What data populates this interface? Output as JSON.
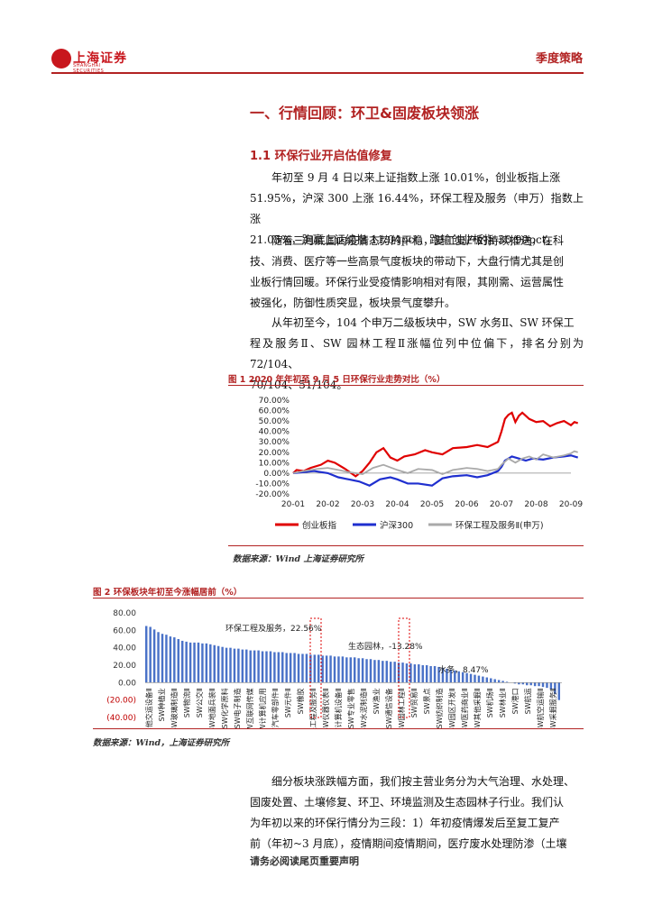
{
  "header": {
    "logo_text": "上海证券",
    "logo_sub": "SHANGHAI SECURITIES",
    "report_type": "季度策略"
  },
  "section": {
    "title": "一、行情回顾：环卫&固废板块领涨",
    "subsection": "1.1 环保行业开启估值修复"
  },
  "paragraphs": [
    [
      "年初至 9 月 4 日以来上证指数上涨 10.01%，创业板指上涨",
      "51.95%，沪深 300 上涨 16.44%，环保工程及服务（申万）指数上涨",
      "21.05%，跑赢上证综指 11.04pct，跑输创业板指 30.90pct。"
    ],
    [
      "随着三月底国内疫情态势的平稳，复工复产的持续推进，在科",
      "技、消费、医疗等一些高景气度板块的带动下，大盘行情尤其是创",
      "业板行情回暖。环保行业受疫情影响相对有限，其刚需、运营属性",
      "被强化，防御性质突显，板块景气度攀升。"
    ],
    [
      "从年初至今，104 个申万二级板块中，SW 水务Ⅱ、SW 环保工",
      "程及服务Ⅱ、SW 园林工程Ⅱ涨幅位列中位偏下，排名分别为 72/104、",
      "70/104、51/104。"
    ]
  ],
  "figure1": {
    "title": "图 1 2020 年年初至 9 月 5 日环保行业走势对比（%）",
    "source": "数据来源：Wind    上海证券研究所"
  },
  "figure2": {
    "title": "图 2 环保板块年初至今涨幅居前（%）",
    "source": "数据来源：Wind，上海证券研究所",
    "annotations": [
      "环保工程及服务，22.56%",
      "生态园林，-13.28%",
      "水务，8.47%"
    ]
  },
  "body_after": [
    "细分板块涨跌幅方面，我们按主营业务分为大气治理、水处理、",
    "固废处置、土壤修复、环卫、环境监测及生态园林子行业。我们认",
    "为年初以来的环保行情分为三段：1）年初疫情爆发后至复工复产",
    "前（年初~3 月底），疫情期间疫情期间，医疗废水处理防渗（土壤"
  ],
  "footer": "请务必阅读尾页重要声明",
  "colors": {
    "accent": "#b22222",
    "series_red": "#e00000",
    "series_blue": "#1f2fcf",
    "series_gray": "#a9a9a9",
    "bar_blue": "#4a72c8"
  },
  "chart_data": [
    {
      "type": "line",
      "title": "",
      "x_ticks": [
        "20-01",
        "20-02",
        "20-03",
        "20-04",
        "20-05",
        "20-06",
        "20-07",
        "20-08",
        "20-09"
      ],
      "y_ticks": [
        "70.00%",
        "60.00%",
        "50.00%",
        "40.00%",
        "30.00%",
        "20.00%",
        "10.00%",
        "0.00%",
        "-10.00%",
        "-20.00%"
      ],
      "ylim": [
        -20,
        70
      ],
      "legend_position": "bottom",
      "series": [
        {
          "name": "创业板指",
          "color": "#e00000",
          "x": [
            0,
            0.1,
            0.3,
            0.5,
            0.8,
            1.0,
            1.2,
            1.5,
            1.8,
            2.0,
            2.2,
            2.4,
            2.6,
            2.8,
            3.0,
            3.2,
            3.5,
            3.8,
            4.0,
            4.3,
            4.6,
            5.0,
            5.3,
            5.6,
            5.9,
            6.0,
            6.1,
            6.2,
            6.3,
            6.4,
            6.5,
            6.6,
            6.8,
            7.0,
            7.2,
            7.4,
            7.6,
            7.8,
            8.0,
            8.1,
            8.2
          ],
          "values": [
            0,
            3,
            2,
            5,
            8,
            12,
            10,
            4,
            -3,
            2,
            10,
            20,
            24,
            15,
            12,
            16,
            18,
            22,
            20,
            18,
            24,
            25,
            27,
            25,
            30,
            40,
            52,
            56,
            58,
            49,
            55,
            58,
            52,
            49,
            50,
            45,
            48,
            50,
            46,
            49,
            48
          ]
        },
        {
          "name": "沪深300",
          "color": "#1f2fcf",
          "x": [
            0,
            0.3,
            0.6,
            1.0,
            1.3,
            1.6,
            1.9,
            2.2,
            2.5,
            2.8,
            3.0,
            3.3,
            3.6,
            4.0,
            4.3,
            4.6,
            5.0,
            5.3,
            5.6,
            5.9,
            6.0,
            6.1,
            6.3,
            6.5,
            6.7,
            6.9,
            7.2,
            7.5,
            7.8,
            8.0,
            8.2
          ],
          "values": [
            0,
            1,
            2,
            0,
            -4,
            -6,
            -8,
            -12,
            -6,
            -4,
            -6,
            -10,
            -10,
            -12,
            -5,
            -3,
            -2,
            -4,
            -2,
            2,
            6,
            12,
            16,
            14,
            12,
            14,
            13,
            15,
            16,
            17,
            15
          ]
        },
        {
          "name": "环保工程及服务Ⅱ(申万)",
          "color": "#a9a9a9",
          "x": [
            0,
            0.3,
            0.7,
            1.0,
            1.3,
            1.6,
            2.0,
            2.3,
            2.6,
            3.0,
            3.3,
            3.6,
            4.0,
            4.3,
            4.6,
            5.0,
            5.3,
            5.6,
            5.9,
            6.0,
            6.2,
            6.4,
            6.6,
            6.8,
            7.0,
            7.2,
            7.5,
            7.8,
            8.0,
            8.1,
            8.2
          ],
          "values": [
            0,
            2,
            4,
            5,
            3,
            1,
            -1,
            5,
            8,
            3,
            0,
            4,
            3,
            -1,
            3,
            5,
            4,
            2,
            4,
            8,
            14,
            10,
            14,
            16,
            13,
            18,
            15,
            17,
            19,
            21,
            20
          ]
        }
      ]
    },
    {
      "type": "bar",
      "title": "",
      "ylim": [
        -40,
        80
      ],
      "y_ticks": [
        "80.00",
        "60.00",
        "40.00",
        "20.00",
        "0.00",
        "(20.00)",
        "(40.00)"
      ],
      "grid": false,
      "category_labels": [
        "SW其他交运设备Ⅱ",
        "SW种植业",
        "SW玻璃制造Ⅱ",
        "SW物流Ⅱ",
        "SW公交Ⅱ",
        "SW地面兵装Ⅱ",
        "SW化学原料",
        "SW电子制造",
        "SW互联网传媒",
        "SW计算机应用",
        "SW汽车零部件Ⅱ",
        "SW元件Ⅱ",
        "SW橡胶",
        "SW环保工程及服务Ⅱ",
        "SW仪器仪表Ⅱ",
        "SW计算机设备Ⅱ",
        "SW专业零售",
        "SW水泥制造Ⅱ",
        "SW渔业",
        "SW通信设备",
        "SW园林工程Ⅱ",
        "SW贸易Ⅱ",
        "SW景点",
        "SW纺织制造",
        "SW园区开发Ⅱ",
        "SW医药商业Ⅱ",
        "SW其他采掘Ⅱ",
        "SW机场Ⅱ",
        "SW林业Ⅱ",
        "SW港口",
        "SW航运",
        "SW航空运输Ⅱ",
        "SW采掘服务Ⅱ"
      ],
      "values": [
        65,
        64,
        61,
        58,
        56,
        55,
        53,
        52,
        50,
        48,
        47,
        46,
        46,
        46,
        45,
        45,
        44,
        43,
        42,
        41,
        40,
        40,
        39,
        39,
        38,
        38,
        37,
        37,
        37,
        36,
        36,
        36,
        35,
        35,
        35,
        34,
        34,
        34,
        33,
        33,
        33,
        32,
        32,
        32,
        31,
        31,
        31,
        30,
        30,
        30,
        29,
        29,
        29,
        28,
        28,
        27,
        27,
        26,
        26,
        25,
        25,
        24,
        24,
        23,
        23,
        22,
        22,
        21,
        21,
        20,
        20,
        19,
        19,
        18,
        17,
        16,
        15,
        14,
        13,
        12,
        11,
        10,
        9,
        8,
        7,
        6,
        5,
        4,
        3,
        2,
        1,
        0,
        -1,
        -2,
        -2,
        -3,
        -3,
        -4,
        -4,
        -5,
        -6,
        -8,
        -13,
        -20
      ]
    }
  ]
}
